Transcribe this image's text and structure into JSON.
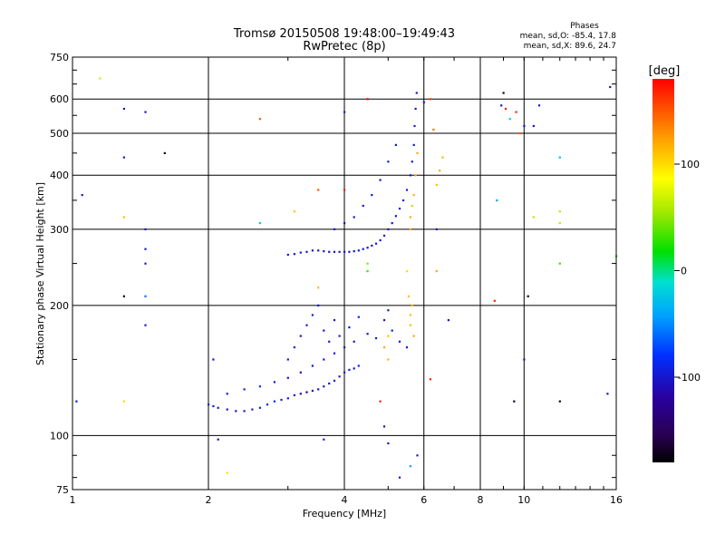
{
  "chart_data": {
    "type": "scatter",
    "title": "Tromsø 20150508 19:48:00–19:49:43",
    "subtitle": "RwPretec (8p)",
    "legend": {
      "heading": "Phases",
      "line1": "mean, sd,O: -85.4, 17.8",
      "line2": "mean, sd,X:  89.6, 24.7"
    },
    "xlabel": "Frequency [MHz]",
    "ylabel": "Stationary phase Virtual Height [km]",
    "x_scale": "log",
    "y_scale": "log",
    "xlim": [
      1,
      16
    ],
    "ylim": [
      75,
      750
    ],
    "x_ticks": [
      1,
      2,
      4,
      6,
      8,
      10,
      16
    ],
    "y_ticks": [
      75,
      100,
      200,
      300,
      400,
      500,
      600,
      750
    ],
    "grid": true,
    "colorbar": {
      "label": "[deg]",
      "range": [
        -180,
        180
      ],
      "ticks": [
        100,
        0,
        -100
      ]
    },
    "series": [
      {
        "points": [
          [
            2.0,
            118,
            -95
          ],
          [
            2.05,
            117,
            -95
          ],
          [
            2.1,
            116,
            -98
          ],
          [
            2.2,
            115,
            -100
          ],
          [
            2.3,
            114,
            -100
          ],
          [
            2.4,
            114,
            -98
          ],
          [
            2.5,
            115,
            -95
          ],
          [
            2.6,
            116,
            -90
          ],
          [
            2.7,
            118,
            -85
          ],
          [
            2.8,
            120,
            -88
          ],
          [
            2.9,
            121,
            -92
          ],
          [
            3.0,
            122,
            -95
          ],
          [
            3.1,
            124,
            -100
          ],
          [
            3.2,
            125,
            -110
          ],
          [
            3.3,
            126,
            -120
          ],
          [
            3.4,
            127,
            -115
          ],
          [
            3.5,
            128,
            -105
          ],
          [
            3.6,
            130,
            -100
          ],
          [
            3.7,
            132,
            -98
          ],
          [
            3.8,
            134,
            -95
          ],
          [
            3.9,
            137,
            -100
          ],
          [
            4.0,
            140,
            -100
          ],
          [
            4.1,
            142,
            -95
          ],
          [
            4.2,
            143,
            -100
          ],
          [
            4.3,
            145,
            -90
          ],
          [
            2.2,
            125,
            -95
          ],
          [
            2.4,
            128,
            -90
          ],
          [
            2.6,
            130,
            -80
          ],
          [
            2.8,
            133,
            -95
          ],
          [
            3.0,
            136,
            -100
          ],
          [
            3.2,
            140,
            -105
          ],
          [
            3.4,
            145,
            -100
          ],
          [
            3.6,
            150,
            -100
          ],
          [
            3.8,
            155,
            -95
          ],
          [
            4.0,
            160,
            -100
          ],
          [
            4.2,
            165,
            -98
          ],
          [
            3.0,
            150,
            -100
          ],
          [
            3.1,
            160,
            -95
          ],
          [
            3.2,
            170,
            -100
          ],
          [
            3.3,
            180,
            -100
          ],
          [
            3.4,
            190,
            -95
          ],
          [
            3.5,
            200,
            -100
          ],
          [
            3.6,
            175,
            -100
          ],
          [
            3.7,
            165,
            -95
          ],
          [
            3.8,
            185,
            -100
          ],
          [
            3.9,
            170,
            -98
          ],
          [
            4.1,
            178,
            -100
          ],
          [
            4.3,
            188,
            -95
          ],
          [
            4.5,
            172,
            -100
          ],
          [
            4.7,
            168,
            -100
          ],
          [
            4.9,
            185,
            -100
          ],
          [
            5.0,
            195,
            -100
          ],
          [
            5.1,
            175,
            -95
          ],
          [
            5.3,
            165,
            -100
          ],
          [
            5.5,
            160,
            -100
          ],
          [
            3.0,
            262,
            -100
          ],
          [
            3.1,
            263,
            -100
          ],
          [
            3.2,
            265,
            -95
          ],
          [
            3.3,
            266,
            -100
          ],
          [
            3.4,
            268,
            -100
          ],
          [
            3.5,
            268,
            -100
          ],
          [
            3.6,
            267,
            -100
          ],
          [
            3.7,
            266,
            -100
          ],
          [
            3.8,
            266,
            -100
          ],
          [
            3.9,
            266,
            -100
          ],
          [
            4.0,
            266,
            -100
          ],
          [
            4.1,
            266,
            -100
          ],
          [
            4.2,
            267,
            -100
          ],
          [
            4.3,
            268,
            -100
          ],
          [
            4.4,
            270,
            -100
          ],
          [
            4.5,
            272,
            -100
          ],
          [
            4.6,
            275,
            -100
          ],
          [
            4.7,
            278,
            -100
          ],
          [
            4.8,
            283,
            -100
          ],
          [
            4.9,
            290,
            -100
          ],
          [
            5.0,
            300,
            -100
          ],
          [
            5.1,
            310,
            -100
          ],
          [
            5.2,
            322,
            -100
          ],
          [
            5.3,
            335,
            -100
          ],
          [
            5.4,
            350,
            -100
          ],
          [
            5.5,
            370,
            -100
          ],
          [
            5.6,
            400,
            -100
          ],
          [
            5.65,
            430,
            -100
          ],
          [
            5.7,
            470,
            -100
          ],
          [
            5.72,
            520,
            -100
          ],
          [
            5.75,
            570,
            -100
          ],
          [
            5.78,
            620,
            -100
          ],
          [
            3.8,
            300,
            -100
          ],
          [
            4.0,
            310,
            -100
          ],
          [
            4.2,
            320,
            -100
          ],
          [
            4.4,
            340,
            -100
          ],
          [
            4.6,
            360,
            -100
          ],
          [
            4.8,
            390,
            -100
          ],
          [
            5.0,
            430,
            -100
          ],
          [
            5.2,
            470,
            -100
          ],
          [
            5.6,
            300,
            120
          ],
          [
            5.6,
            320,
            120
          ],
          [
            5.65,
            340,
            110
          ],
          [
            5.7,
            360,
            115
          ],
          [
            5.75,
            400,
            120
          ],
          [
            5.8,
            450,
            120
          ],
          [
            5.6,
            180,
            110
          ],
          [
            5.6,
            190,
            110
          ],
          [
            5.65,
            200,
            115
          ],
          [
            5.7,
            170,
            120
          ],
          [
            5.55,
            210,
            110
          ],
          [
            4.9,
            160,
            120
          ],
          [
            5.0,
            150,
            115
          ],
          [
            5.0,
            170,
            110
          ],
          [
            6.4,
            380,
            110
          ],
          [
            6.5,
            410,
            120
          ],
          [
            6.6,
            440,
            115
          ],
          [
            3.5,
            220,
            110
          ],
          [
            4.5,
            250,
            50
          ],
          [
            4.5,
            240,
            30
          ],
          [
            5.5,
            240,
            100
          ],
          [
            2.6,
            310,
            0
          ],
          [
            3.1,
            330,
            110
          ],
          [
            3.5,
            370,
            150
          ],
          [
            4.0,
            370,
            170
          ],
          [
            4.5,
            600,
            180
          ],
          [
            4.0,
            560,
            -90
          ],
          [
            6.2,
            600,
            160
          ],
          [
            6.0,
            590,
            -100
          ],
          [
            6.3,
            510,
            140
          ],
          [
            6.4,
            300,
            -100
          ],
          [
            6.8,
            185,
            -100
          ],
          [
            8.9,
            580,
            -100
          ],
          [
            9.0,
            620,
            -170
          ],
          [
            9.1,
            570,
            170
          ],
          [
            9.3,
            540,
            -20
          ],
          [
            9.6,
            560,
            170
          ],
          [
            9.8,
            500,
            150
          ],
          [
            10.0,
            520,
            -100
          ],
          [
            10.5,
            520,
            -100
          ],
          [
            10.8,
            580,
            -100
          ],
          [
            12.0,
            440,
            -30
          ],
          [
            12.0,
            330,
            60
          ],
          [
            12.0,
            310,
            60
          ],
          [
            12.0,
            250,
            30
          ],
          [
            12.0,
            120,
            -170
          ],
          [
            10.2,
            210,
            -170
          ],
          [
            10.0,
            150,
            -100
          ],
          [
            9.5,
            120,
            -170
          ],
          [
            8.6,
            205,
            170
          ],
          [
            8.7,
            350,
            -40
          ],
          [
            10.5,
            320,
            60
          ],
          [
            1.05,
            360,
            -100
          ],
          [
            1.15,
            670,
            70
          ],
          [
            1.3,
            570,
            -100
          ],
          [
            1.3,
            440,
            -100
          ],
          [
            1.3,
            320,
            110
          ],
          [
            1.3,
            210,
            -170
          ],
          [
            1.3,
            120,
            100
          ],
          [
            1.45,
            560,
            -100
          ],
          [
            1.45,
            300,
            -100
          ],
          [
            1.45,
            270,
            -100
          ],
          [
            1.45,
            250,
            -100
          ],
          [
            1.45,
            210,
            -60
          ],
          [
            1.45,
            180,
            -100
          ],
          [
            1.6,
            450,
            -170
          ],
          [
            2.6,
            540,
            150
          ],
          [
            2.05,
            150,
            -100
          ],
          [
            2.1,
            98,
            -100
          ],
          [
            2.2,
            82,
            100
          ],
          [
            3.6,
            98,
            -100
          ],
          [
            4.8,
            120,
            170
          ],
          [
            4.9,
            105,
            -100
          ],
          [
            5.0,
            96,
            -100
          ],
          [
            5.3,
            80,
            -100
          ],
          [
            5.6,
            85,
            -40
          ],
          [
            5.8,
            90,
            -100
          ],
          [
            6.2,
            135,
            170
          ],
          [
            6.4,
            240,
            120
          ],
          [
            1.02,
            120,
            -100
          ],
          [
            15.3,
            125,
            -100
          ],
          [
            15.5,
            640,
            -100
          ],
          [
            16.0,
            260,
            30
          ]
        ]
      }
    ]
  }
}
